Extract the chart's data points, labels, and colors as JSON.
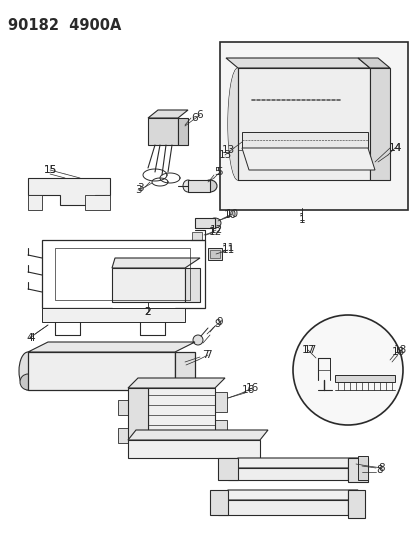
{
  "title": "90182  4900A",
  "bg_color": "#ffffff",
  "fig_width": 4.14,
  "fig_height": 5.33,
  "dpi": 100,
  "line_color": "#2a2a2a",
  "label_fontsize": 7.5,
  "title_fontsize": 10.5
}
